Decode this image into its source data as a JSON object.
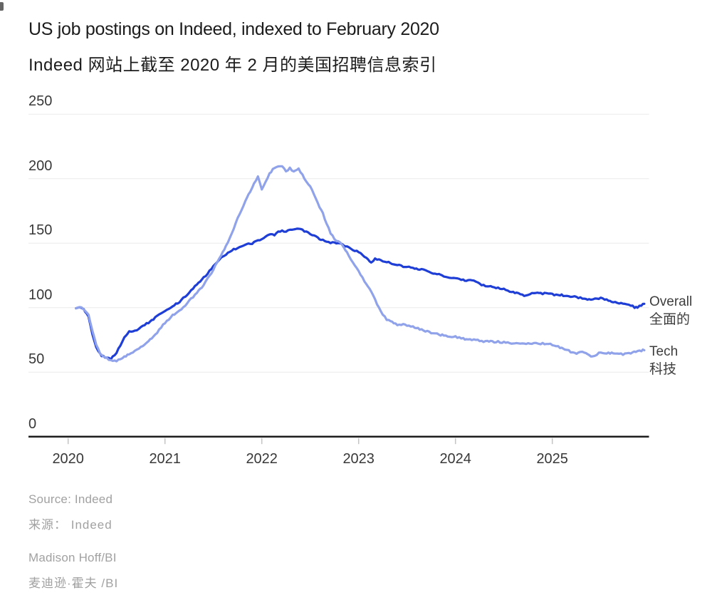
{
  "header": {
    "title": "US job postings on Indeed, indexed to February 2020",
    "subtitle_zh": "Indeed 网站上截至 2020 年 2 月的美国招聘信息索引"
  },
  "legend": {
    "overall_en": "Overall",
    "overall_zh": "全面的",
    "tech_en": "Tech",
    "tech_zh": "科技"
  },
  "source": {
    "source_en": "Source: Indeed",
    "source_zh": "来源： Indeed",
    "byline_en": "Madison Hoff/BI",
    "byline_zh": "麦迪逊·霍夫 /BI"
  },
  "colors": {
    "overall_line": "#1e3ed6",
    "tech_line": "#90a3ea",
    "grid": "#eaeaea",
    "axis": "#1d1d1d",
    "tick": "#c4c4c4",
    "tick_label": "#383838",
    "title_text": "#1c1c1c",
    "muted_text": "#a1a1a1",
    "background": "#ffffff"
  },
  "chart_data": {
    "type": "line",
    "title": "US job postings on Indeed, indexed to February 2020",
    "subtitle": "Indeed 网站上截至 2020 年 2 月的美国招聘信息索引",
    "xlabel": "",
    "ylabel": "",
    "grid": true,
    "legend_position": "right of line ends",
    "ylim": [
      0,
      250
    ],
    "y_ticks": [
      0,
      50,
      100,
      150,
      200,
      250
    ],
    "xlim": [
      2020,
      2026
    ],
    "x_ticks": [
      2020,
      2021,
      2022,
      2023,
      2024,
      2025
    ],
    "x_unit": "year (weekly data, Feb 2020 – Dec 2025)",
    "index_base": "February 2020 = 100",
    "series": [
      {
        "name": "Overall",
        "name_zh": "全面的",
        "color": "#1e3ed6",
        "points": [
          [
            2020.08,
            99.5
          ],
          [
            2020.12,
            100.5
          ],
          [
            2020.16,
            99
          ],
          [
            2020.21,
            93
          ],
          [
            2020.25,
            80
          ],
          [
            2020.29,
            70
          ],
          [
            2020.33,
            64
          ],
          [
            2020.38,
            61
          ],
          [
            2020.44,
            60.5
          ],
          [
            2020.48,
            63
          ],
          [
            2020.52,
            68
          ],
          [
            2020.56,
            74
          ],
          [
            2020.6,
            79
          ],
          [
            2020.63,
            81.5
          ],
          [
            2020.67,
            82
          ],
          [
            2020.71,
            83
          ],
          [
            2020.75,
            85
          ],
          [
            2020.79,
            86.5
          ],
          [
            2020.83,
            88.5
          ],
          [
            2020.88,
            91
          ],
          [
            2020.92,
            93.5
          ],
          [
            2020.96,
            96
          ],
          [
            2021,
            97.5
          ],
          [
            2021.04,
            99
          ],
          [
            2021.08,
            101
          ],
          [
            2021.13,
            103.5
          ],
          [
            2021.17,
            106
          ],
          [
            2021.21,
            109
          ],
          [
            2021.25,
            112
          ],
          [
            2021.29,
            115
          ],
          [
            2021.33,
            118
          ],
          [
            2021.38,
            121.5
          ],
          [
            2021.42,
            125
          ],
          [
            2021.46,
            128.5
          ],
          [
            2021.5,
            132
          ],
          [
            2021.54,
            135.5
          ],
          [
            2021.58,
            138.5
          ],
          [
            2021.63,
            141
          ],
          [
            2021.67,
            143.5
          ],
          [
            2021.71,
            145
          ],
          [
            2021.75,
            146.5
          ],
          [
            2021.79,
            147.5
          ],
          [
            2021.83,
            148.5
          ],
          [
            2021.88,
            149.5
          ],
          [
            2021.92,
            150.5
          ],
          [
            2021.96,
            152
          ],
          [
            2022,
            153
          ],
          [
            2022.04,
            155
          ],
          [
            2022.08,
            157
          ],
          [
            2022.13,
            156
          ],
          [
            2022.17,
            158.5
          ],
          [
            2022.21,
            159.5
          ],
          [
            2022.25,
            159.5
          ],
          [
            2022.29,
            160.5
          ],
          [
            2022.33,
            160.5
          ],
          [
            2022.38,
            161
          ],
          [
            2022.42,
            160
          ],
          [
            2022.46,
            158.5
          ],
          [
            2022.5,
            157
          ],
          [
            2022.54,
            155.5
          ],
          [
            2022.58,
            154
          ],
          [
            2022.63,
            152.5
          ],
          [
            2022.67,
            151.5
          ],
          [
            2022.71,
            150.5
          ],
          [
            2022.75,
            150
          ],
          [
            2022.79,
            149.5
          ],
          [
            2022.83,
            149
          ],
          [
            2022.88,
            147.5
          ],
          [
            2022.92,
            146
          ],
          [
            2022.96,
            144.5
          ],
          [
            2023,
            143
          ],
          [
            2023.04,
            141
          ],
          [
            2023.08,
            138.5
          ],
          [
            2023.13,
            135.5
          ],
          [
            2023.17,
            138
          ],
          [
            2023.21,
            137.5
          ],
          [
            2023.25,
            136.5
          ],
          [
            2023.29,
            135.5
          ],
          [
            2023.33,
            134.5
          ],
          [
            2023.38,
            133.5
          ],
          [
            2023.42,
            133
          ],
          [
            2023.46,
            132
          ],
          [
            2023.5,
            131.5
          ],
          [
            2023.54,
            131
          ],
          [
            2023.58,
            130.5
          ],
          [
            2023.63,
            130
          ],
          [
            2023.67,
            129
          ],
          [
            2023.71,
            128
          ],
          [
            2023.75,
            127.5
          ],
          [
            2023.79,
            126.5
          ],
          [
            2023.83,
            125.5
          ],
          [
            2023.88,
            124.5
          ],
          [
            2023.92,
            124
          ],
          [
            2023.96,
            123.5
          ],
          [
            2024,
            123
          ],
          [
            2024.04,
            122
          ],
          [
            2024.08,
            121.5
          ],
          [
            2024.13,
            121
          ],
          [
            2024.17,
            121
          ],
          [
            2024.21,
            120
          ],
          [
            2024.25,
            118.5
          ],
          [
            2024.29,
            117.5
          ],
          [
            2024.33,
            116.5
          ],
          [
            2024.38,
            116
          ],
          [
            2024.42,
            115.5
          ],
          [
            2024.46,
            115
          ],
          [
            2024.5,
            114.5
          ],
          [
            2024.54,
            113.5
          ],
          [
            2024.58,
            112.5
          ],
          [
            2024.63,
            111.5
          ],
          [
            2024.67,
            110.5
          ],
          [
            2024.71,
            109.3
          ],
          [
            2024.75,
            110
          ],
          [
            2024.79,
            110.8
          ],
          [
            2024.83,
            111
          ],
          [
            2024.88,
            111
          ],
          [
            2024.92,
            111
          ],
          [
            2024.96,
            110.8
          ],
          [
            2025,
            110.5
          ],
          [
            2025.04,
            110
          ],
          [
            2025.08,
            109.8
          ],
          [
            2025.13,
            109.5
          ],
          [
            2025.17,
            109
          ],
          [
            2025.21,
            108.5
          ],
          [
            2025.25,
            108.2
          ],
          [
            2025.29,
            107.8
          ],
          [
            2025.33,
            107
          ],
          [
            2025.38,
            106.5
          ],
          [
            2025.42,
            106.3
          ],
          [
            2025.46,
            106.8
          ],
          [
            2025.5,
            107.2
          ],
          [
            2025.54,
            106.5
          ],
          [
            2025.58,
            105.5
          ],
          [
            2025.63,
            104.8
          ],
          [
            2025.67,
            104
          ],
          [
            2025.71,
            103.5
          ],
          [
            2025.75,
            102.8
          ],
          [
            2025.79,
            102
          ],
          [
            2025.83,
            101
          ],
          [
            2025.85,
            100.3
          ],
          [
            2025.88,
            100
          ],
          [
            2025.92,
            102
          ],
          [
            2025.95,
            103
          ]
        ]
      },
      {
        "name": "Tech",
        "name_zh": "科技",
        "color": "#90a3ea",
        "points": [
          [
            2020.08,
            99.5
          ],
          [
            2020.12,
            100
          ],
          [
            2020.16,
            99
          ],
          [
            2020.21,
            94
          ],
          [
            2020.25,
            82
          ],
          [
            2020.29,
            71
          ],
          [
            2020.33,
            64.5
          ],
          [
            2020.38,
            61
          ],
          [
            2020.44,
            59.5
          ],
          [
            2020.5,
            59
          ],
          [
            2020.54,
            60
          ],
          [
            2020.58,
            62
          ],
          [
            2020.63,
            63.5
          ],
          [
            2020.67,
            65.5
          ],
          [
            2020.71,
            67
          ],
          [
            2020.75,
            69
          ],
          [
            2020.79,
            71.5
          ],
          [
            2020.83,
            74
          ],
          [
            2020.88,
            77.5
          ],
          [
            2020.92,
            81
          ],
          [
            2020.96,
            85
          ],
          [
            2021,
            88.5
          ],
          [
            2021.04,
            91
          ],
          [
            2021.08,
            94
          ],
          [
            2021.13,
            96.5
          ],
          [
            2021.17,
            99
          ],
          [
            2021.21,
            102
          ],
          [
            2021.25,
            105
          ],
          [
            2021.29,
            108.5
          ],
          [
            2021.33,
            112
          ],
          [
            2021.38,
            116
          ],
          [
            2021.42,
            120
          ],
          [
            2021.46,
            124.5
          ],
          [
            2021.5,
            129.5
          ],
          [
            2021.54,
            135
          ],
          [
            2021.58,
            141
          ],
          [
            2021.63,
            147.5
          ],
          [
            2021.67,
            154
          ],
          [
            2021.71,
            161
          ],
          [
            2021.75,
            169
          ],
          [
            2021.79,
            176
          ],
          [
            2021.83,
            183
          ],
          [
            2021.88,
            190
          ],
          [
            2021.92,
            196
          ],
          [
            2021.96,
            202
          ],
          [
            2022,
            191
          ],
          [
            2022.04,
            198
          ],
          [
            2022.08,
            204
          ],
          [
            2022.13,
            208.5
          ],
          [
            2022.17,
            210
          ],
          [
            2022.21,
            209.5
          ],
          [
            2022.25,
            206
          ],
          [
            2022.29,
            208
          ],
          [
            2022.33,
            205.5
          ],
          [
            2022.38,
            207.5
          ],
          [
            2022.42,
            203
          ],
          [
            2022.46,
            198
          ],
          [
            2022.5,
            194.5
          ],
          [
            2022.54,
            188
          ],
          [
            2022.58,
            181
          ],
          [
            2022.63,
            173
          ],
          [
            2022.67,
            165
          ],
          [
            2022.71,
            158
          ],
          [
            2022.75,
            153.5
          ],
          [
            2022.79,
            151
          ],
          [
            2022.83,
            149
          ],
          [
            2022.88,
            143
          ],
          [
            2022.92,
            137.5
          ],
          [
            2022.96,
            132.5
          ],
          [
            2023,
            128
          ],
          [
            2023.04,
            123
          ],
          [
            2023.08,
            118
          ],
          [
            2023.13,
            112.5
          ],
          [
            2023.17,
            106.5
          ],
          [
            2023.21,
            99.5
          ],
          [
            2023.25,
            94.5
          ],
          [
            2023.29,
            91
          ],
          [
            2023.33,
            89
          ],
          [
            2023.38,
            87.5
          ],
          [
            2023.42,
            86.5
          ],
          [
            2023.46,
            87
          ],
          [
            2023.5,
            86
          ],
          [
            2023.54,
            85.5
          ],
          [
            2023.58,
            84.5
          ],
          [
            2023.63,
            83.5
          ],
          [
            2023.67,
            82.5
          ],
          [
            2023.71,
            81.5
          ],
          [
            2023.75,
            80.5
          ],
          [
            2023.79,
            79.8
          ],
          [
            2023.83,
            79
          ],
          [
            2023.88,
            78.5
          ],
          [
            2023.92,
            78
          ],
          [
            2023.96,
            77.5
          ],
          [
            2024,
            77.2
          ],
          [
            2024.04,
            76.5
          ],
          [
            2024.08,
            76
          ],
          [
            2024.13,
            75.5
          ],
          [
            2024.17,
            75
          ],
          [
            2024.21,
            74.8
          ],
          [
            2024.25,
            74.5
          ],
          [
            2024.29,
            74
          ],
          [
            2024.33,
            73.8
          ],
          [
            2024.38,
            73.6
          ],
          [
            2024.42,
            73.7
          ],
          [
            2024.46,
            73.4
          ],
          [
            2024.5,
            73
          ],
          [
            2024.54,
            72.8
          ],
          [
            2024.58,
            72.7
          ],
          [
            2024.63,
            72.5
          ],
          [
            2024.67,
            72.4
          ],
          [
            2024.71,
            72.3
          ],
          [
            2024.75,
            72.4
          ],
          [
            2024.79,
            72.3
          ],
          [
            2024.83,
            72.2
          ],
          [
            2024.88,
            72.2
          ],
          [
            2024.92,
            72
          ],
          [
            2024.96,
            71.7
          ],
          [
            2025,
            71.3
          ],
          [
            2025.04,
            70.5
          ],
          [
            2025.08,
            69.3
          ],
          [
            2025.13,
            68
          ],
          [
            2025.17,
            66.5
          ],
          [
            2025.21,
            65.2
          ],
          [
            2025.25,
            64.8
          ],
          [
            2025.29,
            65.5
          ],
          [
            2025.33,
            65.7
          ],
          [
            2025.38,
            63.5
          ],
          [
            2025.42,
            62
          ],
          [
            2025.46,
            63.5
          ],
          [
            2025.5,
            65.5
          ],
          [
            2025.54,
            64.5
          ],
          [
            2025.58,
            65
          ],
          [
            2025.63,
            64.8
          ],
          [
            2025.67,
            64.2
          ],
          [
            2025.71,
            63.9
          ],
          [
            2025.75,
            63.9
          ],
          [
            2025.79,
            64.5
          ],
          [
            2025.83,
            65.5
          ],
          [
            2025.88,
            66.3
          ],
          [
            2025.92,
            66.8
          ],
          [
            2025.95,
            67
          ]
        ]
      }
    ]
  }
}
